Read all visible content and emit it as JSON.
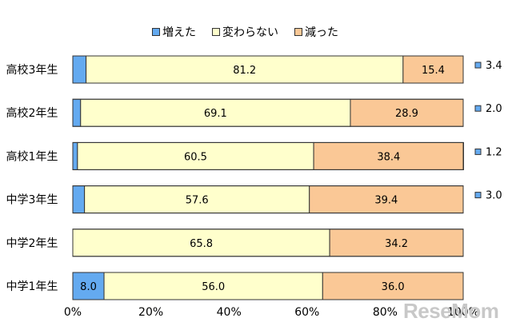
{
  "chart_data": {
    "type": "bar",
    "orientation": "horizontal",
    "stacked": true,
    "categories": [
      "高校3年生",
      "高校2年生",
      "高校1年生",
      "中学3年生",
      "中学2年生",
      "中学1年生"
    ],
    "series": [
      {
        "name": "増えた",
        "color": "#64aaf0",
        "values": [
          3.4,
          2.0,
          1.2,
          3.0,
          0,
          8.0
        ]
      },
      {
        "name": "変わらない",
        "color": "#ffffcc",
        "values": [
          81.2,
          69.1,
          60.5,
          57.6,
          65.8,
          56.0
        ]
      },
      {
        "name": "減った",
        "color": "#fac896",
        "values": [
          15.4,
          28.9,
          38.4,
          39.4,
          34.2,
          36.0
        ]
      }
    ],
    "data_labels": [
      {
        "series": 0,
        "row": 0,
        "text": "3.4",
        "placement": "outside"
      },
      {
        "series": 1,
        "row": 0,
        "text": "81.2",
        "placement": "inside"
      },
      {
        "series": 2,
        "row": 0,
        "text": "15.4",
        "placement": "inside"
      },
      {
        "series": 0,
        "row": 1,
        "text": "2.0",
        "placement": "outside"
      },
      {
        "series": 1,
        "row": 1,
        "text": "69.1",
        "placement": "inside"
      },
      {
        "series": 2,
        "row": 1,
        "text": "28.9",
        "placement": "inside"
      },
      {
        "series": 0,
        "row": 2,
        "text": "1.2",
        "placement": "outside"
      },
      {
        "series": 1,
        "row": 2,
        "text": "60.5",
        "placement": "inside"
      },
      {
        "series": 2,
        "row": 2,
        "text": "38.4",
        "placement": "inside"
      },
      {
        "series": 0,
        "row": 3,
        "text": "3.0",
        "placement": "outside"
      },
      {
        "series": 1,
        "row": 3,
        "text": "57.6",
        "placement": "inside"
      },
      {
        "series": 2,
        "row": 3,
        "text": "39.4",
        "placement": "inside"
      },
      {
        "series": 1,
        "row": 4,
        "text": "65.8",
        "placement": "inside"
      },
      {
        "series": 2,
        "row": 4,
        "text": "34.2",
        "placement": "inside"
      },
      {
        "series": 0,
        "row": 5,
        "text": "8.0",
        "placement": "inside"
      },
      {
        "series": 1,
        "row": 5,
        "text": "56.0",
        "placement": "inside"
      },
      {
        "series": 2,
        "row": 5,
        "text": "36.0",
        "placement": "inside"
      }
    ],
    "x_ticks": [
      "0%",
      "20%",
      "40%",
      "60%",
      "80%",
      "100%"
    ],
    "xlim": [
      0,
      100
    ],
    "legend_position": "top",
    "grid": false
  },
  "watermark": "ReseMom"
}
